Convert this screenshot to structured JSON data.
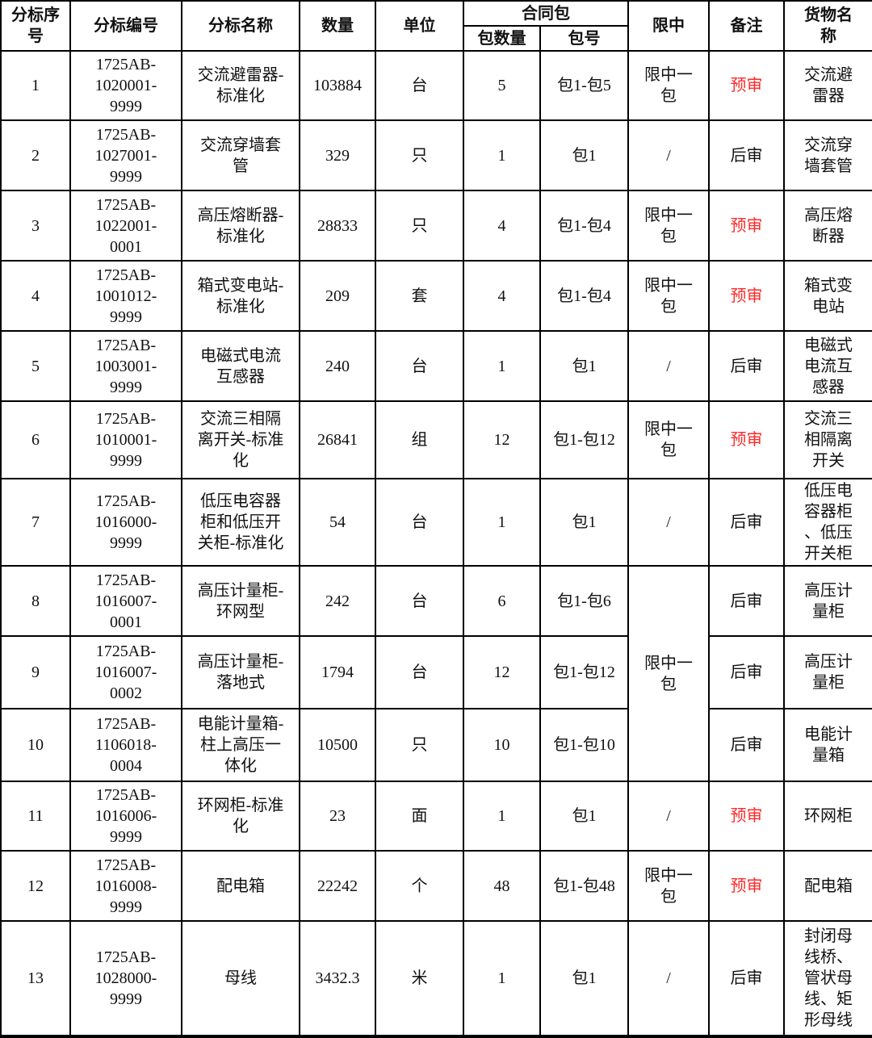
{
  "colors": {
    "remark_red": "#fc2a2a",
    "text": "#111111",
    "border": "#000000"
  },
  "table": {
    "headers": {
      "seq": "分标序\n号",
      "code": "分标编号",
      "name": "分标名称",
      "qty": "数量",
      "unit": "单位",
      "contract_pkg": "合同包",
      "pkg_count": "包数量",
      "pkg_no": "包号",
      "limit": "限中",
      "remark": "备注",
      "goods": "货物名\n称"
    },
    "rows": [
      {
        "seq": "1",
        "code": "1725AB-\n1020001-\n9999",
        "name": "交流避雷器-\n标准化",
        "qty": "103884",
        "unit": "台",
        "pkg_count": "5",
        "pkg_no": "包1-包5",
        "limit": "限中一\n包",
        "limit_rowspan": 1,
        "remark": "预审",
        "remark_red": true,
        "goods": "交流避\n雷器"
      },
      {
        "seq": "2",
        "code": "1725AB-\n1027001-\n9999",
        "name": "交流穿墙套\n管",
        "qty": "329",
        "unit": "只",
        "pkg_count": "1",
        "pkg_no": "包1",
        "limit": "/",
        "limit_rowspan": 1,
        "remark": "后审",
        "remark_red": false,
        "goods": "交流穿\n墙套管"
      },
      {
        "seq": "3",
        "code": "1725AB-\n1022001-\n0001",
        "name": "高压熔断器-\n标准化",
        "qty": "28833",
        "unit": "只",
        "pkg_count": "4",
        "pkg_no": "包1-包4",
        "limit": "限中一\n包",
        "limit_rowspan": 1,
        "remark": "预审",
        "remark_red": true,
        "goods": "高压熔\n断器"
      },
      {
        "seq": "4",
        "code": "1725AB-\n1001012-\n9999",
        "name": "箱式变电站-\n标准化",
        "qty": "209",
        "unit": "套",
        "pkg_count": "4",
        "pkg_no": "包1-包4",
        "limit": "限中一\n包",
        "limit_rowspan": 1,
        "remark": "预审",
        "remark_red": true,
        "goods": "箱式变\n电站"
      },
      {
        "seq": "5",
        "code": "1725AB-\n1003001-\n9999",
        "name": "电磁式电流\n互感器",
        "qty": "240",
        "unit": "台",
        "pkg_count": "1",
        "pkg_no": "包1",
        "limit": "/",
        "limit_rowspan": 1,
        "remark": "后审",
        "remark_red": false,
        "goods": "电磁式\n电流互\n感器"
      },
      {
        "seq": "6",
        "code": "1725AB-\n1010001-\n9999",
        "name": "交流三相隔\n离开关-标准\n化",
        "qty": "26841",
        "unit": "组",
        "pkg_count": "12",
        "pkg_no": "包1-包12",
        "limit": "限中一\n包",
        "limit_rowspan": 1,
        "remark": "预审",
        "remark_red": true,
        "goods": "交流三\n相隔离\n开关"
      },
      {
        "seq": "7",
        "code": "1725AB-\n1016000-\n9999",
        "name": "低压电容器\n柜和低压开\n关柜-标准化",
        "qty": "54",
        "unit": "台",
        "pkg_count": "1",
        "pkg_no": "包1",
        "limit": "/",
        "limit_rowspan": 1,
        "remark": "后审",
        "remark_red": false,
        "goods": "低压电\n容器柜\n、低压\n开关柜"
      },
      {
        "seq": "8",
        "code": "1725AB-\n1016007-\n0001",
        "name": "高压计量柜-\n环网型",
        "qty": "242",
        "unit": "台",
        "pkg_count": "6",
        "pkg_no": "包1-包6",
        "limit": "限中一\n包",
        "limit_rowspan": 3,
        "remark": "后审",
        "remark_red": false,
        "goods": "高压计\n量柜"
      },
      {
        "seq": "9",
        "code": "1725AB-\n1016007-\n0002",
        "name": "高压计量柜-\n落地式",
        "qty": "1794",
        "unit": "台",
        "pkg_count": "12",
        "pkg_no": "包1-包12",
        "limit": null,
        "limit_rowspan": 0,
        "remark": "后审",
        "remark_red": false,
        "goods": "高压计\n量柜"
      },
      {
        "seq": "10",
        "code": "1725AB-\n1106018-\n0004",
        "name": "电能计量箱-\n柱上高压一\n体化",
        "qty": "10500",
        "unit": "只",
        "pkg_count": "10",
        "pkg_no": "包1-包10",
        "limit": null,
        "limit_rowspan": 0,
        "remark": "后审",
        "remark_red": false,
        "goods": "电能计\n量箱"
      },
      {
        "seq": "11",
        "code": "1725AB-\n1016006-\n9999",
        "name": "环网柜-标准\n化",
        "qty": "23",
        "unit": "面",
        "pkg_count": "1",
        "pkg_no": "包1",
        "limit": "/",
        "limit_rowspan": 1,
        "remark": "预审",
        "remark_red": true,
        "goods": "环网柜"
      },
      {
        "seq": "12",
        "code": "1725AB-\n1016008-\n9999",
        "name": "配电箱",
        "qty": "22242",
        "unit": "个",
        "pkg_count": "48",
        "pkg_no": "包1-包48",
        "limit": "限中一\n包",
        "limit_rowspan": 1,
        "remark": "预审",
        "remark_red": true,
        "goods": "配电箱"
      },
      {
        "seq": "13",
        "code": "1725AB-\n1028000-\n9999",
        "name": "母线",
        "qty": "3432.3",
        "unit": "米",
        "pkg_count": "1",
        "pkg_no": "包1",
        "limit": "/",
        "limit_rowspan": 1,
        "remark": "后审",
        "remark_red": false,
        "goods": "封闭母\n线桥、\n管状母\n线、矩\n形母线"
      }
    ]
  }
}
